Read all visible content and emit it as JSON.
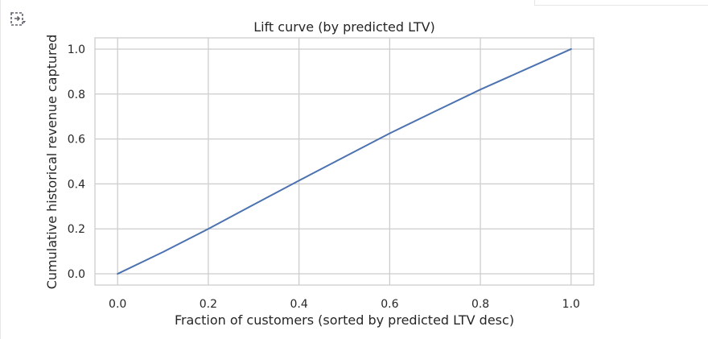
{
  "ui": {
    "output_icon": "output-toggle-icon"
  },
  "chart_data": {
    "type": "line",
    "title": "Lift curve (by predicted LTV)",
    "xlabel": "Fraction of customers (sorted by predicted LTV desc)",
    "ylabel": "Cumulative historical revenue captured",
    "xlim": [
      -0.05,
      1.05
    ],
    "ylim": [
      -0.05,
      1.05
    ],
    "xticks": [
      0.0,
      0.2,
      0.4,
      0.6,
      0.8,
      1.0
    ],
    "xtick_labels": [
      "0.0",
      "0.2",
      "0.4",
      "0.6",
      "0.8",
      "1.0"
    ],
    "yticks": [
      0.0,
      0.2,
      0.4,
      0.6,
      0.8,
      1.0
    ],
    "ytick_labels": [
      "0.0",
      "0.2",
      "0.4",
      "0.6",
      "0.8",
      "1.0"
    ],
    "grid": true,
    "series": [
      {
        "color": "#4c72b0",
        "x": [
          0.0,
          0.1,
          0.2,
          0.3,
          0.4,
          0.5,
          0.6,
          0.7,
          0.8,
          0.9,
          1.0
        ],
        "y": [
          0.0,
          0.097,
          0.2,
          0.308,
          0.415,
          0.52,
          0.625,
          0.723,
          0.82,
          0.91,
          1.0
        ]
      }
    ]
  }
}
